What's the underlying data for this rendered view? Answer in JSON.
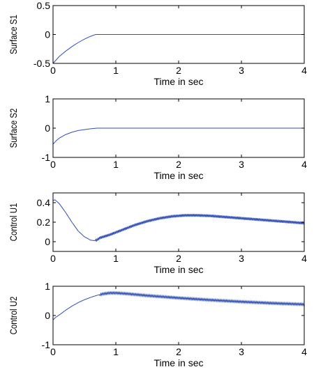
{
  "chart_data": [
    {
      "type": "line",
      "xlabel": "Time in sec",
      "ylabel": "Surface S1",
      "xlim": [
        0,
        4
      ],
      "ylim": [
        -0.5,
        0.5
      ],
      "xticks": [
        0,
        1,
        2,
        3,
        4
      ],
      "xtick_labels": [
        "0",
        "1",
        "2",
        "3",
        "4"
      ],
      "yticks": [
        -0.5,
        0,
        0.5
      ],
      "ytick_labels": [
        "-0.5",
        "0",
        "0.5"
      ],
      "grid": false,
      "series": [
        {
          "color": "#2f4fb5",
          "x": [
            0,
            0.05,
            0.1,
            0.2,
            0.3,
            0.4,
            0.5,
            0.6,
            0.68,
            0.7,
            1,
            1.5,
            2,
            2.5,
            3,
            3.5,
            4
          ],
          "y": [
            -0.5,
            -0.44,
            -0.38,
            -0.29,
            -0.21,
            -0.14,
            -0.08,
            -0.03,
            0,
            0,
            0,
            0,
            0,
            0,
            0,
            0,
            0
          ]
        }
      ]
    },
    {
      "type": "line",
      "xlabel": "Time in sec",
      "ylabel": "Surface S2",
      "xlim": [
        0,
        4
      ],
      "ylim": [
        -1,
        1
      ],
      "xticks": [
        0,
        1,
        2,
        3,
        4
      ],
      "xtick_labels": [
        "0",
        "1",
        "2",
        "3",
        "4"
      ],
      "yticks": [
        -1,
        0,
        1
      ],
      "ytick_labels": [
        "-1",
        "0",
        "1"
      ],
      "grid": false,
      "series": [
        {
          "color": "#2f4fb5",
          "x": [
            0,
            0.05,
            0.1,
            0.2,
            0.3,
            0.4,
            0.5,
            0.6,
            0.7,
            1,
            1.5,
            2,
            2.5,
            3,
            3.5,
            4
          ],
          "y": [
            -0.55,
            -0.43,
            -0.34,
            -0.22,
            -0.14,
            -0.08,
            -0.05,
            -0.02,
            0,
            0,
            0,
            0,
            0,
            0,
            0,
            0
          ]
        }
      ]
    },
    {
      "type": "line",
      "xlabel": "Time in sec",
      "ylabel": "Control U1",
      "xlim": [
        0,
        4
      ],
      "ylim": [
        -0.1,
        0.5
      ],
      "xticks": [
        0,
        1,
        2,
        3,
        4
      ],
      "xtick_labels": [
        "0",
        "1",
        "2",
        "3",
        "4"
      ],
      "yticks": [
        0,
        0.2,
        0.4
      ],
      "ytick_labels": [
        "0",
        "0.2",
        "0.4"
      ],
      "grid": false,
      "series": [
        {
          "color": "#2f4fb5",
          "x": [
            0,
            0.03,
            0.1,
            0.2,
            0.3,
            0.4,
            0.5,
            0.6,
            0.68,
            0.75,
            0.9,
            1.1,
            1.3,
            1.5,
            1.7,
            1.9,
            2.1,
            2.3,
            2.5,
            2.7,
            2.9,
            3.1,
            3.3,
            3.5,
            3.7,
            3.9,
            4
          ],
          "y": [
            0.42,
            0.43,
            0.39,
            0.3,
            0.2,
            0.11,
            0.05,
            0.015,
            0.01,
            0.04,
            0.07,
            0.12,
            0.17,
            0.21,
            0.24,
            0.26,
            0.27,
            0.27,
            0.265,
            0.255,
            0.245,
            0.235,
            0.225,
            0.215,
            0.205,
            0.195,
            0.19
          ]
        }
      ],
      "chatter": {
        "from": 0.68,
        "to": 4,
        "amplitude": 0.014
      }
    },
    {
      "type": "line",
      "xlabel": "Time in sec",
      "ylabel": "Control U2",
      "xlim": [
        0,
        4
      ],
      "ylim": [
        -1,
        1
      ],
      "xticks": [
        0,
        1,
        2,
        3,
        4
      ],
      "xtick_labels": [
        "0",
        "1",
        "2",
        "3",
        "4"
      ],
      "yticks": [
        -1,
        0,
        1
      ],
      "ytick_labels": [
        "-1",
        "0",
        "1"
      ],
      "grid": false,
      "series": [
        {
          "color": "#2f4fb5",
          "x": [
            0,
            0.05,
            0.1,
            0.2,
            0.3,
            0.4,
            0.5,
            0.6,
            0.7,
            0.8,
            0.9,
            1.0,
            1.2,
            1.5,
            2,
            2.5,
            3,
            3.5,
            4
          ],
          "y": [
            -0.15,
            -0.05,
            0.02,
            0.18,
            0.32,
            0.44,
            0.54,
            0.62,
            0.69,
            0.74,
            0.77,
            0.77,
            0.74,
            0.68,
            0.6,
            0.53,
            0.47,
            0.42,
            0.38
          ]
        }
      ],
      "chatter": {
        "from": 0.75,
        "to": 4,
        "amplitude": 0.035
      }
    }
  ]
}
